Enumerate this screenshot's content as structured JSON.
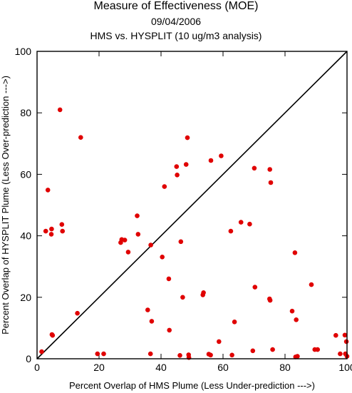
{
  "chart_data": {
    "type": "scatter",
    "title": "Measure of Effectiveness (MOE)",
    "subtitle": "09/04/2006",
    "subtitle2": "HMS vs. HYSPLIT  (10 ug/m3 analysis)",
    "xlabel": "Percent Overlap of HMS Plume (Less Under-prediction --->)",
    "ylabel": "Percent Overlap of HYSPLIT Plume (Less Over-prediction --->)",
    "xlim": [
      0,
      100
    ],
    "ylim": [
      0,
      100
    ],
    "x_ticks": [
      0,
      20,
      40,
      60,
      80,
      100
    ],
    "y_ticks": [
      0,
      20,
      40,
      60,
      80,
      100
    ],
    "tick_labels": [
      "0",
      "20",
      "40",
      "60",
      "80",
      "100"
    ],
    "diagonal": true,
    "point_color": "#e00000",
    "points": [
      [
        1.5,
        2.3
      ],
      [
        3.5,
        54.9
      ],
      [
        2.8,
        41.5
      ],
      [
        4.6,
        40.5
      ],
      [
        4.7,
        42.2
      ],
      [
        4.8,
        7.9
      ],
      [
        5.0,
        7.6
      ],
      [
        7.4,
        81.0
      ],
      [
        8.0,
        43.7
      ],
      [
        8.2,
        41.5
      ],
      [
        13.0,
        14.8
      ],
      [
        14.1,
        72.0
      ],
      [
        19.5,
        1.6
      ],
      [
        21.5,
        1.6
      ],
      [
        27.0,
        37.8
      ],
      [
        27.3,
        38.8
      ],
      [
        28.3,
        38.6
      ],
      [
        29.4,
        34.7
      ],
      [
        32.3,
        46.5
      ],
      [
        32.6,
        40.5
      ],
      [
        35.7,
        15.9
      ],
      [
        36.6,
        1.6
      ],
      [
        36.7,
        37.0
      ],
      [
        37.0,
        12.2
      ],
      [
        40.4,
        33.1
      ],
      [
        41.1,
        56.0
      ],
      [
        42.5,
        26.0
      ],
      [
        42.7,
        9.3
      ],
      [
        45.0,
        62.5
      ],
      [
        45.2,
        59.8
      ],
      [
        46.1,
        1.1
      ],
      [
        46.4,
        38.1
      ],
      [
        47.0,
        20.0
      ],
      [
        48.1,
        63.2
      ],
      [
        48.5,
        71.9
      ],
      [
        48.9,
        1.3
      ],
      [
        49.0,
        0.4
      ],
      [
        53.5,
        20.8
      ],
      [
        53.7,
        21.5
      ],
      [
        55.4,
        1.5
      ],
      [
        56.0,
        1.2
      ],
      [
        56.1,
        64.5
      ],
      [
        58.7,
        5.6
      ],
      [
        59.4,
        66.0
      ],
      [
        62.5,
        41.5
      ],
      [
        62.9,
        1.2
      ],
      [
        63.7,
        12.0
      ],
      [
        65.8,
        44.4
      ],
      [
        68.6,
        43.8
      ],
      [
        69.6,
        2.6
      ],
      [
        70.1,
        62.0
      ],
      [
        70.3,
        23.3
      ],
      [
        75.0,
        19.5
      ],
      [
        75.1,
        61.6
      ],
      [
        75.2,
        19.0
      ],
      [
        75.4,
        57.3
      ],
      [
        76.0,
        3.0
      ],
      [
        82.3,
        15.5
      ],
      [
        83.2,
        34.5
      ],
      [
        83.4,
        0.6
      ],
      [
        83.6,
        12.7
      ],
      [
        84.0,
        0.8
      ],
      [
        88.5,
        24.1
      ],
      [
        89.6,
        3.0
      ],
      [
        90.5,
        3.0
      ],
      [
        96.4,
        7.6
      ],
      [
        97.8,
        1.6
      ],
      [
        99.3,
        7.7
      ],
      [
        99.5,
        1.6
      ],
      [
        99.8,
        5.6
      ],
      [
        100.0,
        0.8
      ]
    ]
  }
}
